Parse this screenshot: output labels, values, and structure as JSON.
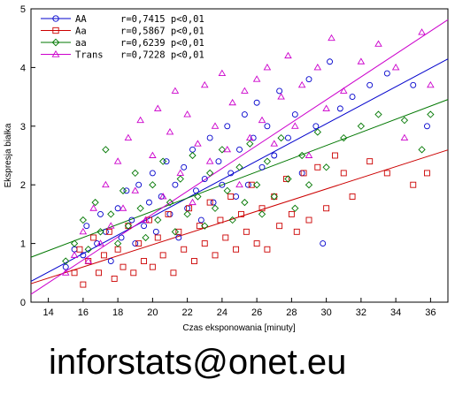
{
  "footer_text": "inforstats@onet.eu",
  "chart_data": {
    "type": "scatter",
    "xlabel": "Czas eksponowania [minuty]",
    "ylabel": "Ekspresja białka",
    "xlim": [
      13,
      37
    ],
    "ylim": [
      0,
      5
    ],
    "xticks": [
      14,
      16,
      18,
      20,
      22,
      24,
      26,
      28,
      30,
      32,
      34,
      36
    ],
    "yticks": [
      0,
      1,
      2,
      3,
      4,
      5
    ],
    "grid": false,
    "legend_position": "top-left",
    "series": [
      {
        "name": "AA",
        "stat": "r=0,7415 p<0,01",
        "marker": "circle",
        "color": "#0000cc",
        "fit": {
          "intercept": -1.7,
          "slope": 0.158
        },
        "points": [
          [
            15,
            0.6
          ],
          [
            15.5,
            0.9
          ],
          [
            16,
            0.8
          ],
          [
            16.2,
            1.3
          ],
          [
            16.8,
            1.0
          ],
          [
            17,
            1.5
          ],
          [
            17.3,
            1.2
          ],
          [
            17.6,
            0.7
          ],
          [
            18,
            1.6
          ],
          [
            18.2,
            1.1
          ],
          [
            18.5,
            1.9
          ],
          [
            18.8,
            1.4
          ],
          [
            19,
            1.0
          ],
          [
            19.2,
            2.0
          ],
          [
            19.5,
            1.3
          ],
          [
            19.8,
            1.7
          ],
          [
            20,
            2.2
          ],
          [
            20.2,
            1.2
          ],
          [
            20.5,
            1.8
          ],
          [
            20.8,
            2.4
          ],
          [
            21,
            1.5
          ],
          [
            21.3,
            2.0
          ],
          [
            21.5,
            1.1
          ],
          [
            21.8,
            2.3
          ],
          [
            22,
            1.6
          ],
          [
            22.3,
            2.6
          ],
          [
            22.5,
            1.9
          ],
          [
            22.8,
            1.4
          ],
          [
            23,
            2.1
          ],
          [
            23.3,
            2.8
          ],
          [
            23.5,
            1.7
          ],
          [
            23.8,
            2.4
          ],
          [
            24,
            2.0
          ],
          [
            24.3,
            3.0
          ],
          [
            24.5,
            2.2
          ],
          [
            24.8,
            1.8
          ],
          [
            25,
            2.6
          ],
          [
            25.3,
            3.2
          ],
          [
            25.5,
            2.0
          ],
          [
            25.8,
            2.8
          ],
          [
            26,
            3.4
          ],
          [
            26.3,
            2.3
          ],
          [
            26.6,
            3.0
          ],
          [
            27,
            2.5
          ],
          [
            27.3,
            3.6
          ],
          [
            27.8,
            2.8
          ],
          [
            28.2,
            3.2
          ],
          [
            28.6,
            2.2
          ],
          [
            29,
            3.8
          ],
          [
            29.4,
            3.0
          ],
          [
            29.8,
            1.0
          ],
          [
            30.2,
            4.1
          ],
          [
            30.8,
            3.3
          ],
          [
            31.5,
            3.5
          ],
          [
            32.5,
            3.7
          ],
          [
            33.5,
            3.9
          ],
          [
            35,
            3.7
          ],
          [
            35.8,
            3.0
          ]
        ]
      },
      {
        "name": "Aa",
        "stat": "r=0,5867 p<0,01",
        "marker": "square",
        "color": "#cc0000",
        "fit": {
          "intercept": -0.92,
          "slope": 0.095
        },
        "points": [
          [
            15.5,
            0.5
          ],
          [
            15.8,
            0.9
          ],
          [
            16,
            0.3
          ],
          [
            16.3,
            0.7
          ],
          [
            16.6,
            1.1
          ],
          [
            16.9,
            0.5
          ],
          [
            17.2,
            0.8
          ],
          [
            17.5,
            1.2
          ],
          [
            17.8,
            0.4
          ],
          [
            18,
            0.9
          ],
          [
            18.3,
            0.6
          ],
          [
            18.6,
            1.3
          ],
          [
            18.9,
            0.5
          ],
          [
            19.2,
            1.0
          ],
          [
            19.5,
            0.7
          ],
          [
            19.8,
            1.4
          ],
          [
            20,
            0.6
          ],
          [
            20.3,
            1.1
          ],
          [
            20.6,
            0.8
          ],
          [
            20.9,
            1.5
          ],
          [
            21.2,
            0.5
          ],
          [
            21.5,
            1.2
          ],
          [
            21.8,
            0.9
          ],
          [
            22.1,
            1.6
          ],
          [
            22.4,
            0.7
          ],
          [
            22.7,
            1.3
          ],
          [
            23,
            1.0
          ],
          [
            23.3,
            1.7
          ],
          [
            23.6,
            0.8
          ],
          [
            23.9,
            1.4
          ],
          [
            24.2,
            1.1
          ],
          [
            24.5,
            1.8
          ],
          [
            24.8,
            0.9
          ],
          [
            25.1,
            1.5
          ],
          [
            25.4,
            1.2
          ],
          [
            25.7,
            2.0
          ],
          [
            26,
            1.0
          ],
          [
            26.3,
            1.6
          ],
          [
            26.6,
            0.9
          ],
          [
            27,
            1.8
          ],
          [
            27.3,
            1.3
          ],
          [
            27.7,
            2.1
          ],
          [
            28,
            1.5
          ],
          [
            28.3,
            1.2
          ],
          [
            28.7,
            2.2
          ],
          [
            29,
            1.4
          ],
          [
            29.5,
            2.3
          ],
          [
            30,
            1.6
          ],
          [
            30.5,
            2.5
          ],
          [
            31,
            2.2
          ],
          [
            31.5,
            1.8
          ],
          [
            32.5,
            2.4
          ],
          [
            33.5,
            2.2
          ],
          [
            35,
            2.0
          ],
          [
            35.8,
            2.2
          ]
        ]
      },
      {
        "name": "aa",
        "stat": "r=0,6239 p<0,01",
        "marker": "diamond",
        "color": "#007700",
        "fit": {
          "intercept": -0.69,
          "slope": 0.112
        },
        "points": [
          [
            15,
            0.7
          ],
          [
            15.5,
            1.0
          ],
          [
            16,
            1.4
          ],
          [
            16.3,
            0.9
          ],
          [
            16.7,
            1.7
          ],
          [
            17,
            1.2
          ],
          [
            17.3,
            2.6
          ],
          [
            17.6,
            1.5
          ],
          [
            18,
            1.0
          ],
          [
            18.3,
            1.9
          ],
          [
            18.6,
            1.3
          ],
          [
            19,
            2.2
          ],
          [
            19.3,
            1.6
          ],
          [
            19.6,
            1.1
          ],
          [
            20,
            2.0
          ],
          [
            20.3,
            1.4
          ],
          [
            20.6,
            2.4
          ],
          [
            21,
            1.7
          ],
          [
            21.3,
            1.2
          ],
          [
            21.6,
            2.1
          ],
          [
            22,
            1.5
          ],
          [
            22.3,
            2.5
          ],
          [
            22.6,
            1.8
          ],
          [
            23,
            1.3
          ],
          [
            23.3,
            2.2
          ],
          [
            23.6,
            1.6
          ],
          [
            24,
            2.6
          ],
          [
            24.3,
            1.9
          ],
          [
            24.6,
            1.4
          ],
          [
            25,
            2.3
          ],
          [
            25.3,
            1.7
          ],
          [
            25.6,
            2.7
          ],
          [
            26,
            2.0
          ],
          [
            26.3,
            1.5
          ],
          [
            26.6,
            2.4
          ],
          [
            27,
            1.8
          ],
          [
            27.4,
            2.8
          ],
          [
            27.8,
            2.1
          ],
          [
            28.2,
            1.6
          ],
          [
            28.6,
            2.5
          ],
          [
            29,
            2.0
          ],
          [
            29.5,
            2.9
          ],
          [
            30,
            2.3
          ],
          [
            31,
            2.8
          ],
          [
            32,
            3.0
          ],
          [
            33,
            3.2
          ],
          [
            34.5,
            3.1
          ],
          [
            35.5,
            2.6
          ],
          [
            36,
            3.2
          ]
        ]
      },
      {
        "name": "Trans",
        "stat": "r=0,7228 p<0,01",
        "marker": "triangle",
        "color": "#cc00cc",
        "fit": {
          "intercept": -2.4,
          "slope": 0.195
        },
        "points": [
          [
            15,
            0.5
          ],
          [
            15.5,
            0.8
          ],
          [
            16,
            1.2
          ],
          [
            16.3,
            0.7
          ],
          [
            16.6,
            1.6
          ],
          [
            17,
            1.0
          ],
          [
            17.3,
            2.0
          ],
          [
            17.6,
            1.3
          ],
          [
            18,
            2.4
          ],
          [
            18.3,
            1.6
          ],
          [
            18.6,
            2.8
          ],
          [
            19,
            1.9
          ],
          [
            19.3,
            3.1
          ],
          [
            19.6,
            1.4
          ],
          [
            20,
            2.5
          ],
          [
            20.3,
            3.3
          ],
          [
            20.6,
            1.8
          ],
          [
            21,
            2.9
          ],
          [
            21.3,
            3.6
          ],
          [
            21.6,
            2.2
          ],
          [
            22,
            3.2
          ],
          [
            22.3,
            1.7
          ],
          [
            22.6,
            2.7
          ],
          [
            23,
            3.7
          ],
          [
            23.3,
            2.4
          ],
          [
            23.6,
            3.0
          ],
          [
            24,
            3.9
          ],
          [
            24.3,
            2.6
          ],
          [
            24.6,
            3.4
          ],
          [
            25,
            2.0
          ],
          [
            25.3,
            3.6
          ],
          [
            25.6,
            2.8
          ],
          [
            26,
            3.8
          ],
          [
            26.3,
            3.1
          ],
          [
            26.6,
            4.0
          ],
          [
            27,
            2.7
          ],
          [
            27.4,
            3.5
          ],
          [
            27.8,
            4.2
          ],
          [
            28.2,
            3.0
          ],
          [
            28.6,
            3.7
          ],
          [
            29,
            2.5
          ],
          [
            29.5,
            4.0
          ],
          [
            30,
            3.3
          ],
          [
            30.3,
            4.5
          ],
          [
            31,
            3.6
          ],
          [
            32,
            4.1
          ],
          [
            33,
            4.4
          ],
          [
            34,
            4.0
          ],
          [
            34.5,
            2.8
          ],
          [
            35.5,
            4.6
          ],
          [
            36,
            3.7
          ]
        ]
      }
    ]
  }
}
